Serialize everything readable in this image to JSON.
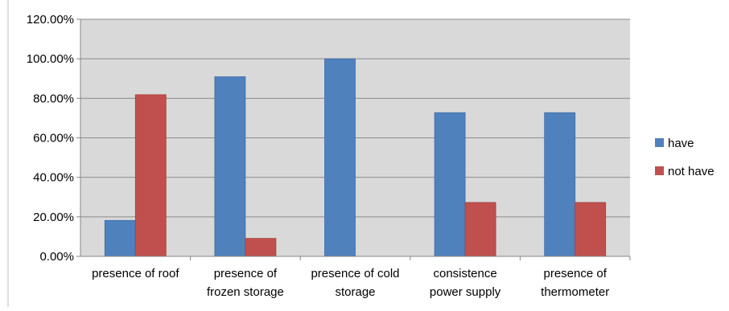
{
  "chart_data": {
    "type": "bar",
    "categories": [
      [
        "presence of roof"
      ],
      [
        "presence of",
        "frozen storage"
      ],
      [
        "presence of cold",
        "storage"
      ],
      [
        "consistence",
        "power supply"
      ],
      [
        "presence of",
        "thermometer"
      ]
    ],
    "series": [
      {
        "name": "have",
        "values": [
          18.18,
          90.91,
          100.0,
          72.73,
          72.73
        ],
        "color": "#4F81BD"
      },
      {
        "name": "not have",
        "values": [
          81.82,
          9.09,
          0.0,
          27.27,
          27.27
        ],
        "color": "#C0504D"
      }
    ],
    "y_ticks": [
      "0.00%",
      "20.00%",
      "40.00%",
      "60.00%",
      "80.00%",
      "100.00%",
      "120.00%"
    ],
    "ylim": [
      0,
      120
    ],
    "grid": true,
    "legend_position": "right",
    "plot_background": "#D9D9D9"
  }
}
